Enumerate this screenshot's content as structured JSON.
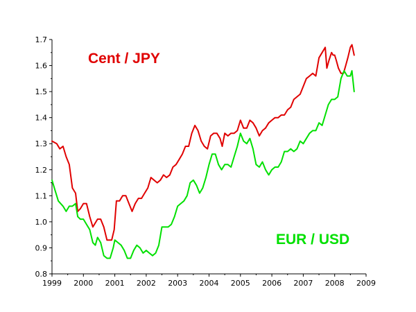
{
  "chart_data": {
    "type": "line",
    "title": "",
    "xlabel": "",
    "ylabel": "",
    "xlim": [
      1999,
      2009
    ],
    "ylim": [
      0.8,
      1.7
    ],
    "grid": false,
    "x_ticks": [
      1999,
      2000,
      2001,
      2002,
      2003,
      2004,
      2005,
      2006,
      2007,
      2008,
      2009
    ],
    "y_ticks": [
      0.8,
      0.9,
      1.0,
      1.1,
      1.2,
      1.3,
      1.4,
      1.5,
      1.6,
      1.7
    ],
    "y_tick_labels": [
      "0.8",
      "0.9",
      "1.0",
      "1.1",
      "1.2",
      "1.3",
      "1.4",
      "1.5",
      "1.6",
      "1.7"
    ],
    "series": [
      {
        "name": "Cent / JPY",
        "color": "#e00000",
        "points": [
          [
            1999.0,
            1.31
          ],
          [
            1999.15,
            1.3
          ],
          [
            1999.25,
            1.28
          ],
          [
            1999.35,
            1.29
          ],
          [
            1999.45,
            1.25
          ],
          [
            1999.55,
            1.22
          ],
          [
            1999.65,
            1.13
          ],
          [
            1999.75,
            1.11
          ],
          [
            1999.82,
            1.04
          ],
          [
            1999.9,
            1.05
          ],
          [
            2000.0,
            1.07
          ],
          [
            2000.1,
            1.07
          ],
          [
            2000.2,
            1.02
          ],
          [
            2000.3,
            0.98
          ],
          [
            2000.45,
            1.01
          ],
          [
            2000.55,
            1.01
          ],
          [
            2000.65,
            0.98
          ],
          [
            2000.75,
            0.93
          ],
          [
            2000.9,
            0.93
          ],
          [
            2000.98,
            0.97
          ],
          [
            2001.05,
            1.08
          ],
          [
            2001.15,
            1.08
          ],
          [
            2001.25,
            1.1
          ],
          [
            2001.35,
            1.1
          ],
          [
            2001.45,
            1.07
          ],
          [
            2001.55,
            1.04
          ],
          [
            2001.65,
            1.07
          ],
          [
            2001.75,
            1.09
          ],
          [
            2001.85,
            1.09
          ],
          [
            2001.95,
            1.11
          ],
          [
            2002.05,
            1.13
          ],
          [
            2002.15,
            1.17
          ],
          [
            2002.25,
            1.16
          ],
          [
            2002.35,
            1.15
          ],
          [
            2002.45,
            1.16
          ],
          [
            2002.55,
            1.18
          ],
          [
            2002.65,
            1.17
          ],
          [
            2002.75,
            1.18
          ],
          [
            2002.85,
            1.21
          ],
          [
            2002.95,
            1.22
          ],
          [
            2003.05,
            1.24
          ],
          [
            2003.15,
            1.26
          ],
          [
            2003.25,
            1.29
          ],
          [
            2003.35,
            1.29
          ],
          [
            2003.45,
            1.34
          ],
          [
            2003.55,
            1.37
          ],
          [
            2003.65,
            1.35
          ],
          [
            2003.75,
            1.31
          ],
          [
            2003.85,
            1.29
          ],
          [
            2003.95,
            1.28
          ],
          [
            2004.05,
            1.33
          ],
          [
            2004.15,
            1.34
          ],
          [
            2004.25,
            1.34
          ],
          [
            2004.35,
            1.32
          ],
          [
            2004.42,
            1.29
          ],
          [
            2004.5,
            1.34
          ],
          [
            2004.6,
            1.33
          ],
          [
            2004.7,
            1.34
          ],
          [
            2004.8,
            1.34
          ],
          [
            2004.9,
            1.35
          ],
          [
            2005.0,
            1.39
          ],
          [
            2005.1,
            1.36
          ],
          [
            2005.2,
            1.36
          ],
          [
            2005.3,
            1.39
          ],
          [
            2005.4,
            1.38
          ],
          [
            2005.5,
            1.36
          ],
          [
            2005.6,
            1.33
          ],
          [
            2005.7,
            1.35
          ],
          [
            2005.8,
            1.36
          ],
          [
            2005.9,
            1.38
          ],
          [
            2006.0,
            1.39
          ],
          [
            2006.1,
            1.4
          ],
          [
            2006.2,
            1.4
          ],
          [
            2006.3,
            1.41
          ],
          [
            2006.4,
            1.41
          ],
          [
            2006.5,
            1.43
          ],
          [
            2006.6,
            1.44
          ],
          [
            2006.7,
            1.47
          ],
          [
            2006.8,
            1.48
          ],
          [
            2006.9,
            1.49
          ],
          [
            2007.0,
            1.52
          ],
          [
            2007.1,
            1.55
          ],
          [
            2007.2,
            1.56
          ],
          [
            2007.3,
            1.57
          ],
          [
            2007.4,
            1.56
          ],
          [
            2007.5,
            1.63
          ],
          [
            2007.6,
            1.65
          ],
          [
            2007.7,
            1.67
          ],
          [
            2007.75,
            1.59
          ],
          [
            2007.82,
            1.62
          ],
          [
            2007.9,
            1.65
          ],
          [
            2007.95,
            1.64
          ],
          [
            2008.0,
            1.64
          ],
          [
            2008.05,
            1.62
          ],
          [
            2008.12,
            1.59
          ],
          [
            2008.2,
            1.57
          ],
          [
            2008.28,
            1.57
          ],
          [
            2008.35,
            1.6
          ],
          [
            2008.42,
            1.63
          ],
          [
            2008.5,
            1.67
          ],
          [
            2008.55,
            1.68
          ],
          [
            2008.62,
            1.64
          ]
        ]
      },
      {
        "name": "EUR / USD",
        "color": "#00e000",
        "points": [
          [
            1999.0,
            1.16
          ],
          [
            1999.1,
            1.12
          ],
          [
            1999.2,
            1.08
          ],
          [
            1999.35,
            1.06
          ],
          [
            1999.45,
            1.04
          ],
          [
            1999.55,
            1.06
          ],
          [
            1999.65,
            1.06
          ],
          [
            1999.75,
            1.07
          ],
          [
            1999.82,
            1.02
          ],
          [
            1999.9,
            1.01
          ],
          [
            2000.0,
            1.01
          ],
          [
            2000.1,
            0.99
          ],
          [
            2000.2,
            0.97
          ],
          [
            2000.3,
            0.92
          ],
          [
            2000.38,
            0.91
          ],
          [
            2000.45,
            0.94
          ],
          [
            2000.55,
            0.92
          ],
          [
            2000.65,
            0.87
          ],
          [
            2000.75,
            0.86
          ],
          [
            2000.85,
            0.86
          ],
          [
            2000.95,
            0.9
          ],
          [
            2001.0,
            0.93
          ],
          [
            2001.1,
            0.92
          ],
          [
            2001.2,
            0.91
          ],
          [
            2001.3,
            0.89
          ],
          [
            2001.4,
            0.86
          ],
          [
            2001.5,
            0.86
          ],
          [
            2001.6,
            0.89
          ],
          [
            2001.7,
            0.91
          ],
          [
            2001.8,
            0.9
          ],
          [
            2001.9,
            0.88
          ],
          [
            2002.0,
            0.89
          ],
          [
            2002.1,
            0.88
          ],
          [
            2002.2,
            0.87
          ],
          [
            2002.3,
            0.88
          ],
          [
            2002.4,
            0.91
          ],
          [
            2002.5,
            0.98
          ],
          [
            2002.6,
            0.98
          ],
          [
            2002.7,
            0.98
          ],
          [
            2002.8,
            0.99
          ],
          [
            2002.9,
            1.02
          ],
          [
            2003.0,
            1.06
          ],
          [
            2003.1,
            1.07
          ],
          [
            2003.2,
            1.08
          ],
          [
            2003.3,
            1.1
          ],
          [
            2003.4,
            1.15
          ],
          [
            2003.5,
            1.16
          ],
          [
            2003.6,
            1.14
          ],
          [
            2003.7,
            1.11
          ],
          [
            2003.8,
            1.13
          ],
          [
            2003.9,
            1.17
          ],
          [
            2004.0,
            1.22
          ],
          [
            2004.1,
            1.26
          ],
          [
            2004.2,
            1.26
          ],
          [
            2004.3,
            1.22
          ],
          [
            2004.4,
            1.2
          ],
          [
            2004.5,
            1.22
          ],
          [
            2004.6,
            1.22
          ],
          [
            2004.7,
            1.21
          ],
          [
            2004.8,
            1.25
          ],
          [
            2004.9,
            1.29
          ],
          [
            2005.0,
            1.34
          ],
          [
            2005.1,
            1.31
          ],
          [
            2005.2,
            1.3
          ],
          [
            2005.3,
            1.32
          ],
          [
            2005.4,
            1.28
          ],
          [
            2005.5,
            1.22
          ],
          [
            2005.6,
            1.21
          ],
          [
            2005.7,
            1.23
          ],
          [
            2005.8,
            1.2
          ],
          [
            2005.9,
            1.18
          ],
          [
            2006.0,
            1.2
          ],
          [
            2006.1,
            1.21
          ],
          [
            2006.2,
            1.21
          ],
          [
            2006.3,
            1.23
          ],
          [
            2006.4,
            1.27
          ],
          [
            2006.5,
            1.27
          ],
          [
            2006.6,
            1.28
          ],
          [
            2006.7,
            1.27
          ],
          [
            2006.8,
            1.28
          ],
          [
            2006.9,
            1.31
          ],
          [
            2007.0,
            1.3
          ],
          [
            2007.1,
            1.32
          ],
          [
            2007.2,
            1.34
          ],
          [
            2007.3,
            1.35
          ],
          [
            2007.4,
            1.35
          ],
          [
            2007.5,
            1.38
          ],
          [
            2007.6,
            1.37
          ],
          [
            2007.7,
            1.41
          ],
          [
            2007.8,
            1.45
          ],
          [
            2007.9,
            1.47
          ],
          [
            2008.0,
            1.47
          ],
          [
            2008.1,
            1.48
          ],
          [
            2008.2,
            1.55
          ],
          [
            2008.3,
            1.58
          ],
          [
            2008.4,
            1.56
          ],
          [
            2008.5,
            1.56
          ],
          [
            2008.55,
            1.58
          ],
          [
            2008.62,
            1.5
          ]
        ]
      }
    ]
  }
}
